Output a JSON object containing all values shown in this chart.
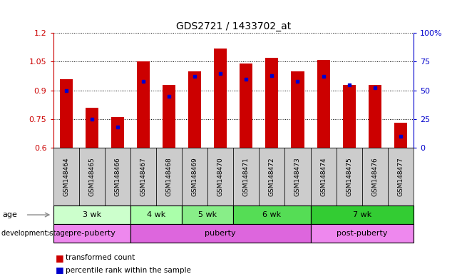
{
  "title": "GDS2721 / 1433702_at",
  "samples": [
    "GSM148464",
    "GSM148465",
    "GSM148466",
    "GSM148467",
    "GSM148468",
    "GSM148469",
    "GSM148470",
    "GSM148471",
    "GSM148472",
    "GSM148473",
    "GSM148474",
    "GSM148475",
    "GSM148476",
    "GSM148477"
  ],
  "transformed_count": [
    0.96,
    0.81,
    0.76,
    1.05,
    0.93,
    1.0,
    1.12,
    1.04,
    1.07,
    1.0,
    1.06,
    0.93,
    0.93,
    0.73
  ],
  "percentile_rank": [
    50,
    25,
    18,
    58,
    45,
    62,
    65,
    60,
    63,
    58,
    62,
    55,
    52,
    10
  ],
  "ylim_left": [
    0.6,
    1.2
  ],
  "ylim_right": [
    0,
    100
  ],
  "bar_color": "#cc0000",
  "dot_color": "#0000cc",
  "bar_bottom": 0.6,
  "yticks_left": [
    0.6,
    0.75,
    0.9,
    1.05,
    1.2
  ],
  "yticks_left_labels": [
    "0.6",
    "0.75",
    "0.9",
    "1.05",
    "1.2"
  ],
  "yticks_right": [
    0,
    25,
    50,
    75,
    100
  ],
  "yticks_right_labels": [
    "0",
    "25",
    "50",
    "75",
    "100%"
  ],
  "age_groups": [
    {
      "label": "3 wk",
      "start": 0,
      "end": 3,
      "color": "#ccffcc"
    },
    {
      "label": "4 wk",
      "start": 3,
      "end": 5,
      "color": "#aaffaa"
    },
    {
      "label": "5 wk",
      "start": 5,
      "end": 7,
      "color": "#88ee88"
    },
    {
      "label": "6 wk",
      "start": 7,
      "end": 10,
      "color": "#55dd55"
    },
    {
      "label": "7 wk",
      "start": 10,
      "end": 14,
      "color": "#33cc33"
    }
  ],
  "dev_groups": [
    {
      "label": "pre-puberty",
      "start": 0,
      "end": 3,
      "color": "#ee88ee"
    },
    {
      "label": "puberty",
      "start": 3,
      "end": 10,
      "color": "#dd66dd"
    },
    {
      "label": "post-puberty",
      "start": 10,
      "end": 14,
      "color": "#ee88ee"
    }
  ],
  "legend_bar_label": "transformed count",
  "legend_dot_label": "percentile rank within the sample",
  "background_color": "#ffffff",
  "tick_label_color_left": "#cc0000",
  "tick_label_color_right": "#0000cc",
  "sample_box_color": "#cccccc"
}
